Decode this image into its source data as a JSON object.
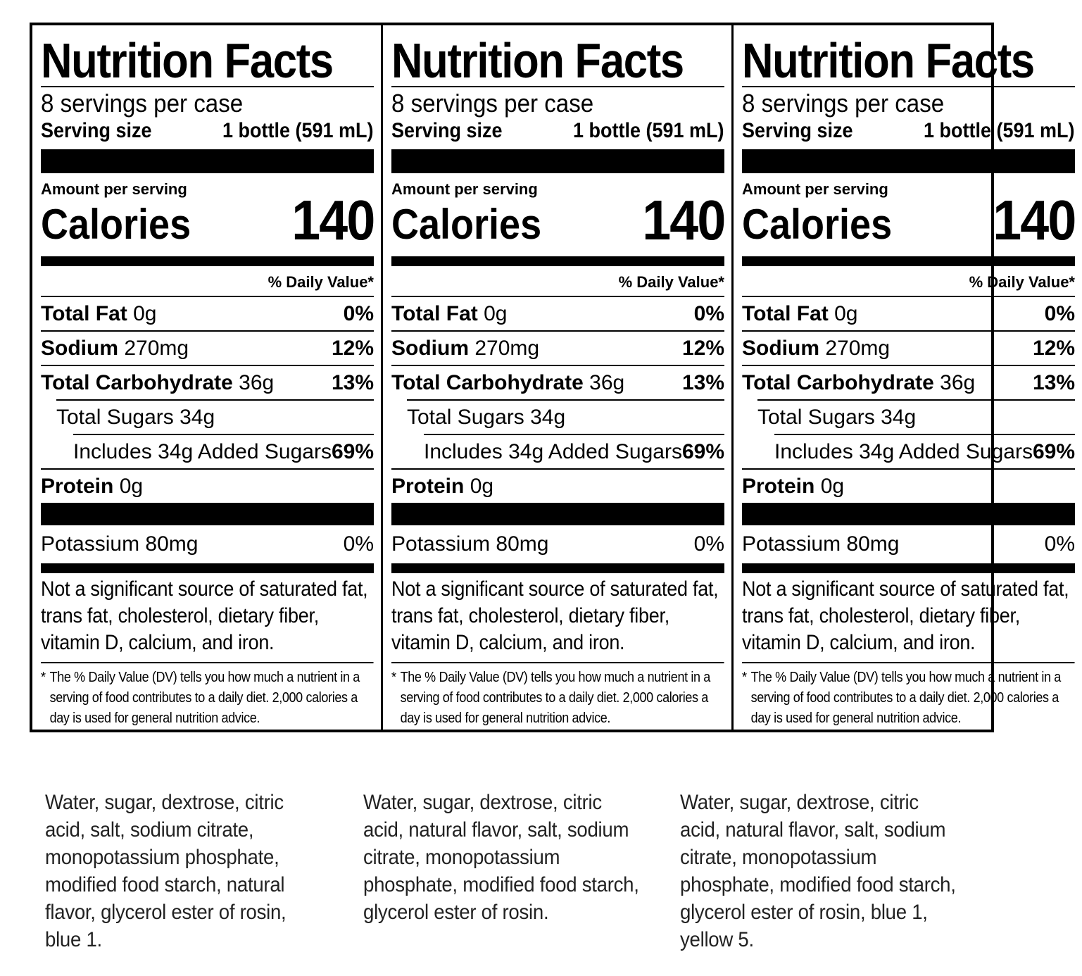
{
  "panels": [
    {
      "title": "Nutrition Facts",
      "servings_per": "8 servings per case",
      "serving_size_label": "Serving size",
      "serving_size_value": "1 bottle (591 mL)",
      "amount_label": "Amount per serving",
      "calories_label": "Calories",
      "calories_value": "140",
      "dv_header": "% Daily Value*",
      "total_fat_label": "Total Fat",
      "total_fat_amount": "0g",
      "total_fat_dv": "0%",
      "sodium_label": "Sodium",
      "sodium_amount": "270mg",
      "sodium_dv": "12%",
      "carb_label": "Total Carbohydrate",
      "carb_amount": "36g",
      "carb_dv": "13%",
      "sugars_text": "Total Sugars 34g",
      "added_sugars_text": "Includes 34g Added Sugars",
      "added_sugars_dv": "69%",
      "protein_label": "Protein",
      "protein_amount": "0g",
      "potassium_text": "Potassium 80mg",
      "potassium_dv": "0%",
      "note": "Not a significant source of saturated fat, trans fat, cholesterol, dietary fiber, vitamin D, calcium, and iron.",
      "footnote_star": "*",
      "footnote": "The % Daily Value (DV) tells you how much a nutrient in a serving of food contributes to a daily diet. 2,000 calories a day is used for general nutrition advice."
    },
    {
      "title": "Nutrition Facts",
      "servings_per": "8 servings per case",
      "serving_size_label": "Serving size",
      "serving_size_value": "1 bottle (591 mL)",
      "amount_label": "Amount per serving",
      "calories_label": "Calories",
      "calories_value": "140",
      "dv_header": "% Daily Value*",
      "total_fat_label": "Total Fat",
      "total_fat_amount": "0g",
      "total_fat_dv": "0%",
      "sodium_label": "Sodium",
      "sodium_amount": "270mg",
      "sodium_dv": "12%",
      "carb_label": "Total Carbohydrate",
      "carb_amount": "36g",
      "carb_dv": "13%",
      "sugars_text": "Total Sugars 34g",
      "added_sugars_text": "Includes 34g Added Sugars",
      "added_sugars_dv": "69%",
      "protein_label": "Protein",
      "protein_amount": "0g",
      "potassium_text": "Potassium 80mg",
      "potassium_dv": "0%",
      "note": "Not a significant source of saturated fat, trans fat, cholesterol, dietary fiber, vitamin D, calcium, and iron.",
      "footnote_star": "*",
      "footnote": "The % Daily Value (DV) tells you how much a nutrient in a serving of food contributes to a daily diet. 2,000 calories a day is used for general nutrition advice."
    },
    {
      "title": "Nutrition Facts",
      "servings_per": "8 servings per case",
      "serving_size_label": "Serving size",
      "serving_size_value": "1 bottle (591 mL)",
      "amount_label": "Amount per serving",
      "calories_label": "Calories",
      "calories_value": "140",
      "dv_header": "% Daily Value*",
      "total_fat_label": "Total Fat",
      "total_fat_amount": "0g",
      "total_fat_dv": "0%",
      "sodium_label": "Sodium",
      "sodium_amount": "270mg",
      "sodium_dv": "12%",
      "carb_label": "Total Carbohydrate",
      "carb_amount": "36g",
      "carb_dv": "13%",
      "sugars_text": "Total Sugars 34g",
      "added_sugars_text": "Includes 34g Added Sugars",
      "added_sugars_dv": "69%",
      "protein_label": "Protein",
      "protein_amount": "0g",
      "potassium_text": "Potassium 80mg",
      "potassium_dv": "0%",
      "note": "Not a significant source of saturated fat, trans fat, cholesterol, dietary fiber, vitamin D, calcium, and iron.",
      "footnote_star": "*",
      "footnote": "The % Daily Value (DV) tells you how much a nutrient in a serving of food contributes to a daily diet. 2,000 calories a day is used for general nutrition advice."
    }
  ],
  "ingredients": [
    "Water, sugar, dextrose, citric acid, salt, sodium citrate, monopotassium phosphate, modified food starch, natural flavor, glycerol ester of rosin, blue 1.",
    "Water, sugar, dextrose, citric acid, natural flavor, salt, sodium citrate, monopotassium phosphate, modified food starch, glycerol ester of rosin.",
    "Water, sugar, dextrose, citric acid, natural flavor, salt, sodium citrate, monopotassium phosphate, modified food starch, glycerol ester of rosin, blue 1, yellow 5."
  ]
}
